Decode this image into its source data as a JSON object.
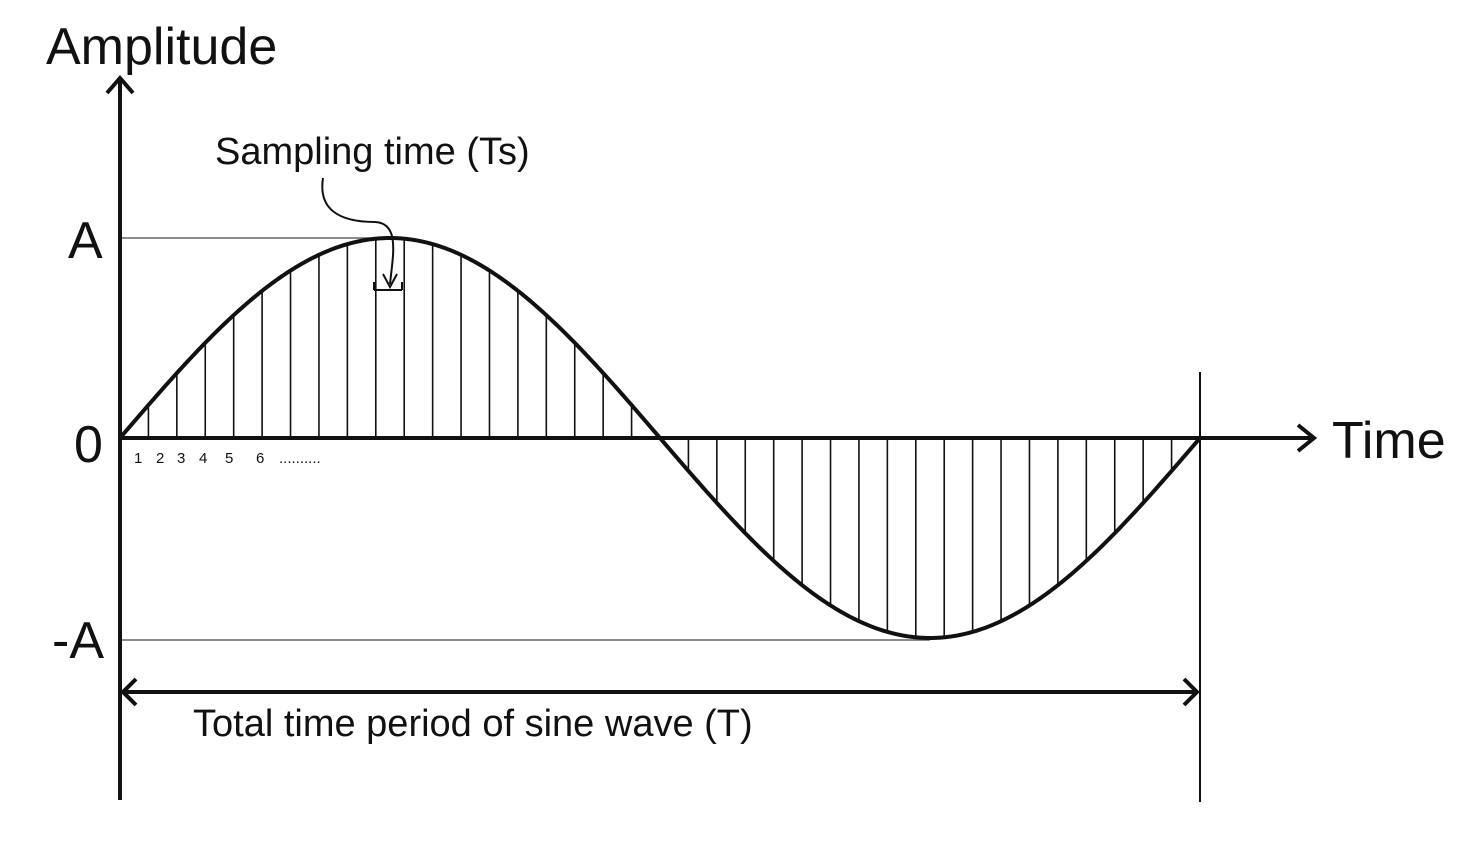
{
  "axes": {
    "y_label": "Amplitude",
    "x_label": "Time"
  },
  "levels": {
    "positive_label": "A",
    "zero_label": "0",
    "negative_label": "-A"
  },
  "annotations": {
    "sampling_time": "Sampling time (Ts)",
    "total_period": "Total time period of sine wave (T)"
  },
  "sample_index_labels": [
    "1",
    "2",
    "3",
    "4",
    "5",
    "6",
    ".........."
  ],
  "wave": {
    "cycles": 1,
    "sample_count": 38,
    "amplitude": 1,
    "period": 1
  },
  "colors": {
    "line": "#111111",
    "guide": "#666666",
    "background": "#ffffff"
  }
}
